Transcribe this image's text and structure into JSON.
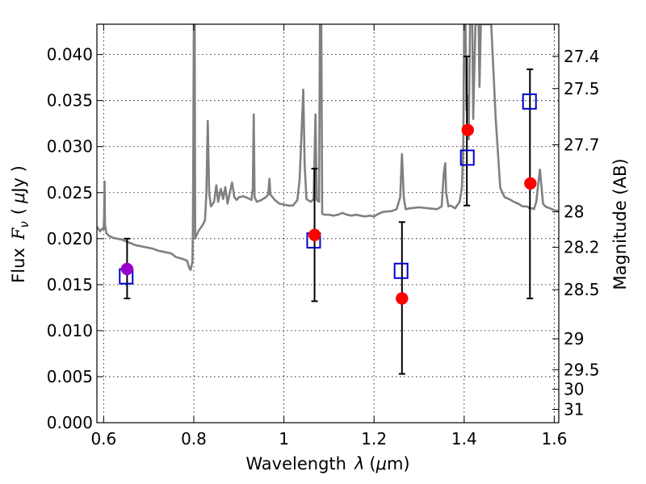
{
  "chart_data": {
    "type": "scatter",
    "xlabel_text": "Wavelength",
    "xlabel_symbol": "λ",
    "xlabel_unit_open": "(",
    "xlabel_unit_mu": "μ",
    "xlabel_unit_rest": "m)",
    "ylabel_text": "Flux",
    "ylabel_symbol_F": "F",
    "ylabel_symbol_nu": "ν",
    "ylabel_unit_open": "(",
    "ylabel_unit_mu": "μ",
    "ylabel_unit_rest": "Jy )",
    "y2label": "Magnitude (AB)",
    "xlim": [
      0.585,
      1.61
    ],
    "ylim": [
      0.0,
      0.0433
    ],
    "grid": true,
    "x_ticks": [
      {
        "value": 0.6,
        "label": "0.6"
      },
      {
        "value": 0.8,
        "label": "0.8"
      },
      {
        "value": 1.0,
        "label": "1"
      },
      {
        "value": 1.2,
        "label": "1.2"
      },
      {
        "value": 1.4,
        "label": "1.4"
      },
      {
        "value": 1.6,
        "label": "1.6"
      }
    ],
    "y_ticks": [
      {
        "value": 0.0,
        "label": "0.000"
      },
      {
        "value": 0.005,
        "label": "0.005"
      },
      {
        "value": 0.01,
        "label": "0.010"
      },
      {
        "value": 0.015,
        "label": "0.015"
      },
      {
        "value": 0.02,
        "label": "0.020"
      },
      {
        "value": 0.025,
        "label": "0.025"
      },
      {
        "value": 0.03,
        "label": "0.030"
      },
      {
        "value": 0.035,
        "label": "0.035"
      },
      {
        "value": 0.04,
        "label": "0.040"
      }
    ],
    "y2_ticks": [
      {
        "mag": 27.4,
        "label": "27.4"
      },
      {
        "mag": 27.5,
        "label": "27.5"
      },
      {
        "mag": 27.7,
        "label": "27.7"
      },
      {
        "mag": 28.0,
        "label": "28"
      },
      {
        "mag": 28.2,
        "label": "28.2"
      },
      {
        "mag": 28.5,
        "label": "28.5"
      },
      {
        "mag": 29.0,
        "label": "29"
      },
      {
        "mag": 29.5,
        "label": "29.5"
      },
      {
        "mag": 30.0,
        "label": "30"
      },
      {
        "mag": 31.0,
        "label": "31"
      }
    ],
    "series": [
      {
        "name": "model spectrum",
        "kind": "line",
        "color": "#808080",
        "points": [
          [
            0.585,
            0.0213
          ],
          [
            0.592,
            0.0208
          ],
          [
            0.597,
            0.0211
          ],
          [
            0.6,
            0.021
          ],
          [
            0.601,
            0.0225
          ],
          [
            0.602,
            0.0262
          ],
          [
            0.603,
            0.0215
          ],
          [
            0.606,
            0.0206
          ],
          [
            0.612,
            0.0203
          ],
          [
            0.62,
            0.0201
          ],
          [
            0.63,
            0.02
          ],
          [
            0.64,
            0.0199
          ],
          [
            0.65,
            0.0197
          ],
          [
            0.66,
            0.0195
          ],
          [
            0.67,
            0.0193
          ],
          [
            0.68,
            0.0192
          ],
          [
            0.69,
            0.0191
          ],
          [
            0.7,
            0.019
          ],
          [
            0.71,
            0.0189
          ],
          [
            0.72,
            0.0187
          ],
          [
            0.73,
            0.0186
          ],
          [
            0.75,
            0.0184
          ],
          [
            0.76,
            0.018
          ],
          [
            0.775,
            0.0178
          ],
          [
            0.785,
            0.0176
          ],
          [
            0.79,
            0.0168
          ],
          [
            0.793,
            0.0166
          ],
          [
            0.797,
            0.0175
          ],
          [
            0.798,
            0.021
          ],
          [
            0.799,
            0.03
          ],
          [
            0.8,
            0.0433
          ],
          [
            0.802,
            0.0433
          ],
          [
            0.803,
            0.02
          ],
          [
            0.81,
            0.0208
          ],
          [
            0.82,
            0.0215
          ],
          [
            0.825,
            0.022
          ],
          [
            0.828,
            0.025
          ],
          [
            0.831,
            0.0328
          ],
          [
            0.834,
            0.025
          ],
          [
            0.838,
            0.0235
          ],
          [
            0.845,
            0.024
          ],
          [
            0.85,
            0.0258
          ],
          [
            0.854,
            0.024
          ],
          [
            0.86,
            0.0254
          ],
          [
            0.865,
            0.0243
          ],
          [
            0.87,
            0.0256
          ],
          [
            0.875,
            0.0238
          ],
          [
            0.88,
            0.025
          ],
          [
            0.885,
            0.0261
          ],
          [
            0.89,
            0.0245
          ],
          [
            0.895,
            0.0242
          ],
          [
            0.9,
            0.0245
          ],
          [
            0.91,
            0.0246
          ],
          [
            0.92,
            0.0244
          ],
          [
            0.928,
            0.0242
          ],
          [
            0.931,
            0.0255
          ],
          [
            0.933,
            0.0335
          ],
          [
            0.935,
            0.0245
          ],
          [
            0.94,
            0.024
          ],
          [
            0.95,
            0.0242
          ],
          [
            0.96,
            0.0245
          ],
          [
            0.965,
            0.0248
          ],
          [
            0.968,
            0.0265
          ],
          [
            0.97,
            0.0248
          ],
          [
            0.98,
            0.0242
          ],
          [
            0.99,
            0.0238
          ],
          [
            1.0,
            0.0237
          ],
          [
            1.01,
            0.0236
          ],
          [
            1.02,
            0.0236
          ],
          [
            1.03,
            0.0242
          ],
          [
            1.035,
            0.0265
          ],
          [
            1.04,
            0.0325
          ],
          [
            1.043,
            0.0362
          ],
          [
            1.046,
            0.028
          ],
          [
            1.05,
            0.0243
          ],
          [
            1.06,
            0.024
          ],
          [
            1.066,
            0.0243
          ],
          [
            1.07,
            0.0335
          ],
          [
            1.073,
            0.0242
          ],
          [
            1.078,
            0.024
          ],
          [
            1.08,
            0.0433
          ],
          [
            1.083,
            0.0433
          ],
          [
            1.085,
            0.0227
          ],
          [
            1.09,
            0.0226
          ],
          [
            1.1,
            0.0226
          ],
          [
            1.11,
            0.0225
          ],
          [
            1.12,
            0.0226
          ],
          [
            1.13,
            0.0228
          ],
          [
            1.14,
            0.0226
          ],
          [
            1.15,
            0.0225
          ],
          [
            1.16,
            0.0226
          ],
          [
            1.17,
            0.0225
          ],
          [
            1.18,
            0.0224
          ],
          [
            1.19,
            0.0225
          ],
          [
            1.2,
            0.0224
          ],
          [
            1.21,
            0.0227
          ],
          [
            1.22,
            0.0229
          ],
          [
            1.24,
            0.023
          ],
          [
            1.25,
            0.0232
          ],
          [
            1.258,
            0.0245
          ],
          [
            1.262,
            0.0292
          ],
          [
            1.266,
            0.0245
          ],
          [
            1.27,
            0.0232
          ],
          [
            1.28,
            0.0233
          ],
          [
            1.3,
            0.0234
          ],
          [
            1.32,
            0.0233
          ],
          [
            1.34,
            0.0232
          ],
          [
            1.35,
            0.0235
          ],
          [
            1.355,
            0.0272
          ],
          [
            1.358,
            0.0282
          ],
          [
            1.36,
            0.025
          ],
          [
            1.365,
            0.0235
          ],
          [
            1.37,
            0.0236
          ],
          [
            1.38,
            0.0233
          ],
          [
            1.39,
            0.024
          ],
          [
            1.395,
            0.0255
          ],
          [
            1.398,
            0.03
          ],
          [
            1.4,
            0.0433
          ],
          [
            1.403,
            0.0433
          ],
          [
            1.405,
            0.034
          ],
          [
            1.408,
            0.0355
          ],
          [
            1.41,
            0.0308
          ],
          [
            1.413,
            0.0433
          ],
          [
            1.418,
            0.0433
          ],
          [
            1.42,
            0.033
          ],
          [
            1.425,
            0.0433
          ],
          [
            1.432,
            0.0433
          ],
          [
            1.434,
            0.0365
          ],
          [
            1.437,
            0.0433
          ],
          [
            1.46,
            0.0433
          ],
          [
            1.47,
            0.033
          ],
          [
            1.48,
            0.0255
          ],
          [
            1.49,
            0.0245
          ],
          [
            1.5,
            0.0243
          ],
          [
            1.51,
            0.024
          ],
          [
            1.52,
            0.0238
          ],
          [
            1.53,
            0.0235
          ],
          [
            1.54,
            0.0235
          ],
          [
            1.545,
            0.0233
          ],
          [
            1.55,
            0.0233
          ],
          [
            1.555,
            0.0232
          ],
          [
            1.56,
            0.024
          ],
          [
            1.565,
            0.0262
          ],
          [
            1.568,
            0.0275
          ],
          [
            1.571,
            0.026
          ],
          [
            1.575,
            0.0238
          ],
          [
            1.58,
            0.0235
          ],
          [
            1.59,
            0.0233
          ],
          [
            1.6,
            0.0231
          ],
          [
            1.61,
            0.023
          ]
        ]
      },
      {
        "name": "measured flux (red)",
        "kind": "markers",
        "marker": "circle",
        "color": "#ff0000",
        "points": [
          {
            "x": 1.068,
            "y": 0.0204
          },
          {
            "x": 1.262,
            "y": 0.0135
          },
          {
            "x": 1.408,
            "y": 0.0318
          },
          {
            "x": 1.547,
            "y": 0.026
          }
        ]
      },
      {
        "name": "measured flux (purple)",
        "kind": "markers",
        "marker": "circle",
        "color": "#9900cc",
        "points": [
          {
            "x": 0.652,
            "y": 0.0167
          }
        ]
      },
      {
        "name": "model photometry",
        "kind": "markers",
        "marker": "open-square",
        "color": "#0000cc",
        "points": [
          {
            "x": 0.65,
            "y": 0.0159
          },
          {
            "x": 1.066,
            "y": 0.0198
          },
          {
            "x": 1.26,
            "y": 0.0165
          },
          {
            "x": 1.407,
            "y": 0.0288
          },
          {
            "x": 1.545,
            "y": 0.0349
          }
        ]
      },
      {
        "name": "error bars",
        "kind": "errorbars",
        "color": "#000000",
        "bars": [
          {
            "x": 0.652,
            "low": 0.0135,
            "high": 0.02
          },
          {
            "x": 1.068,
            "low": 0.0132,
            "high": 0.0276
          },
          {
            "x": 1.262,
            "low": 0.0053,
            "high": 0.0218
          },
          {
            "x": 1.406,
            "low": 0.0236,
            "high": 0.0398
          },
          {
            "x": 1.546,
            "low": 0.0135,
            "high": 0.0384
          }
        ]
      }
    ]
  }
}
